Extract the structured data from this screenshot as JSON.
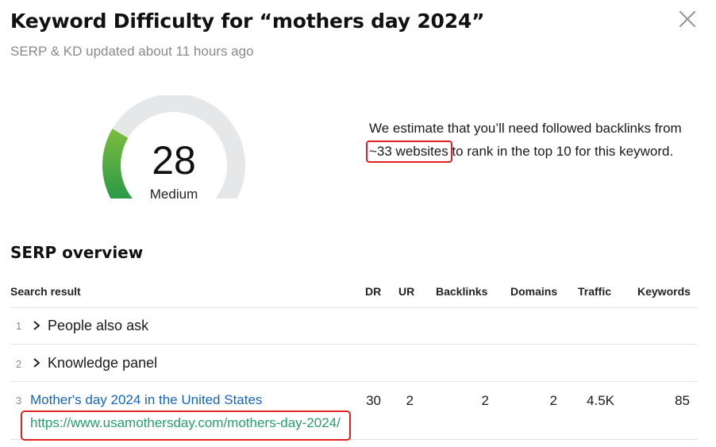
{
  "header": {
    "title": "Keyword Difficulty for “mothers day 2024”",
    "updated": "SERP & KD updated about 11 hours ago"
  },
  "difficulty": {
    "score": "28",
    "score_value": 28,
    "label": "Medium",
    "colors": {
      "track": "#e6e7e8",
      "fill_start": "#7cbd3c",
      "fill_end": "#16904a"
    }
  },
  "estimate": {
    "before": "We estimate that you’ll need followed backlinks from ",
    "highlight": "~33 websites",
    "after": " to rank in the top 10 for this keyword."
  },
  "serp": {
    "title": "SERP overview",
    "columns": {
      "result": "Search result",
      "dr": "DR",
      "ur": "UR",
      "backlinks": "Backlinks",
      "domains": "Domains",
      "traffic": "Traffic",
      "keywords": "Keywords"
    },
    "rows": [
      {
        "index": "1",
        "label": "People also ask"
      },
      {
        "index": "2",
        "label": "Knowledge panel"
      },
      {
        "index": "3",
        "title": "Mother's day 2024 in the United States",
        "url": "https://www.usamothersday.com/mothers-day-2024/",
        "dr": "30",
        "ur": "2",
        "backlinks": "2",
        "domains": "2",
        "traffic": "4.5K",
        "keywords": "85"
      }
    ]
  },
  "accent_colors": {
    "link": "#1565c0",
    "url": "#25a06a",
    "annotation": "#e0221f"
  }
}
